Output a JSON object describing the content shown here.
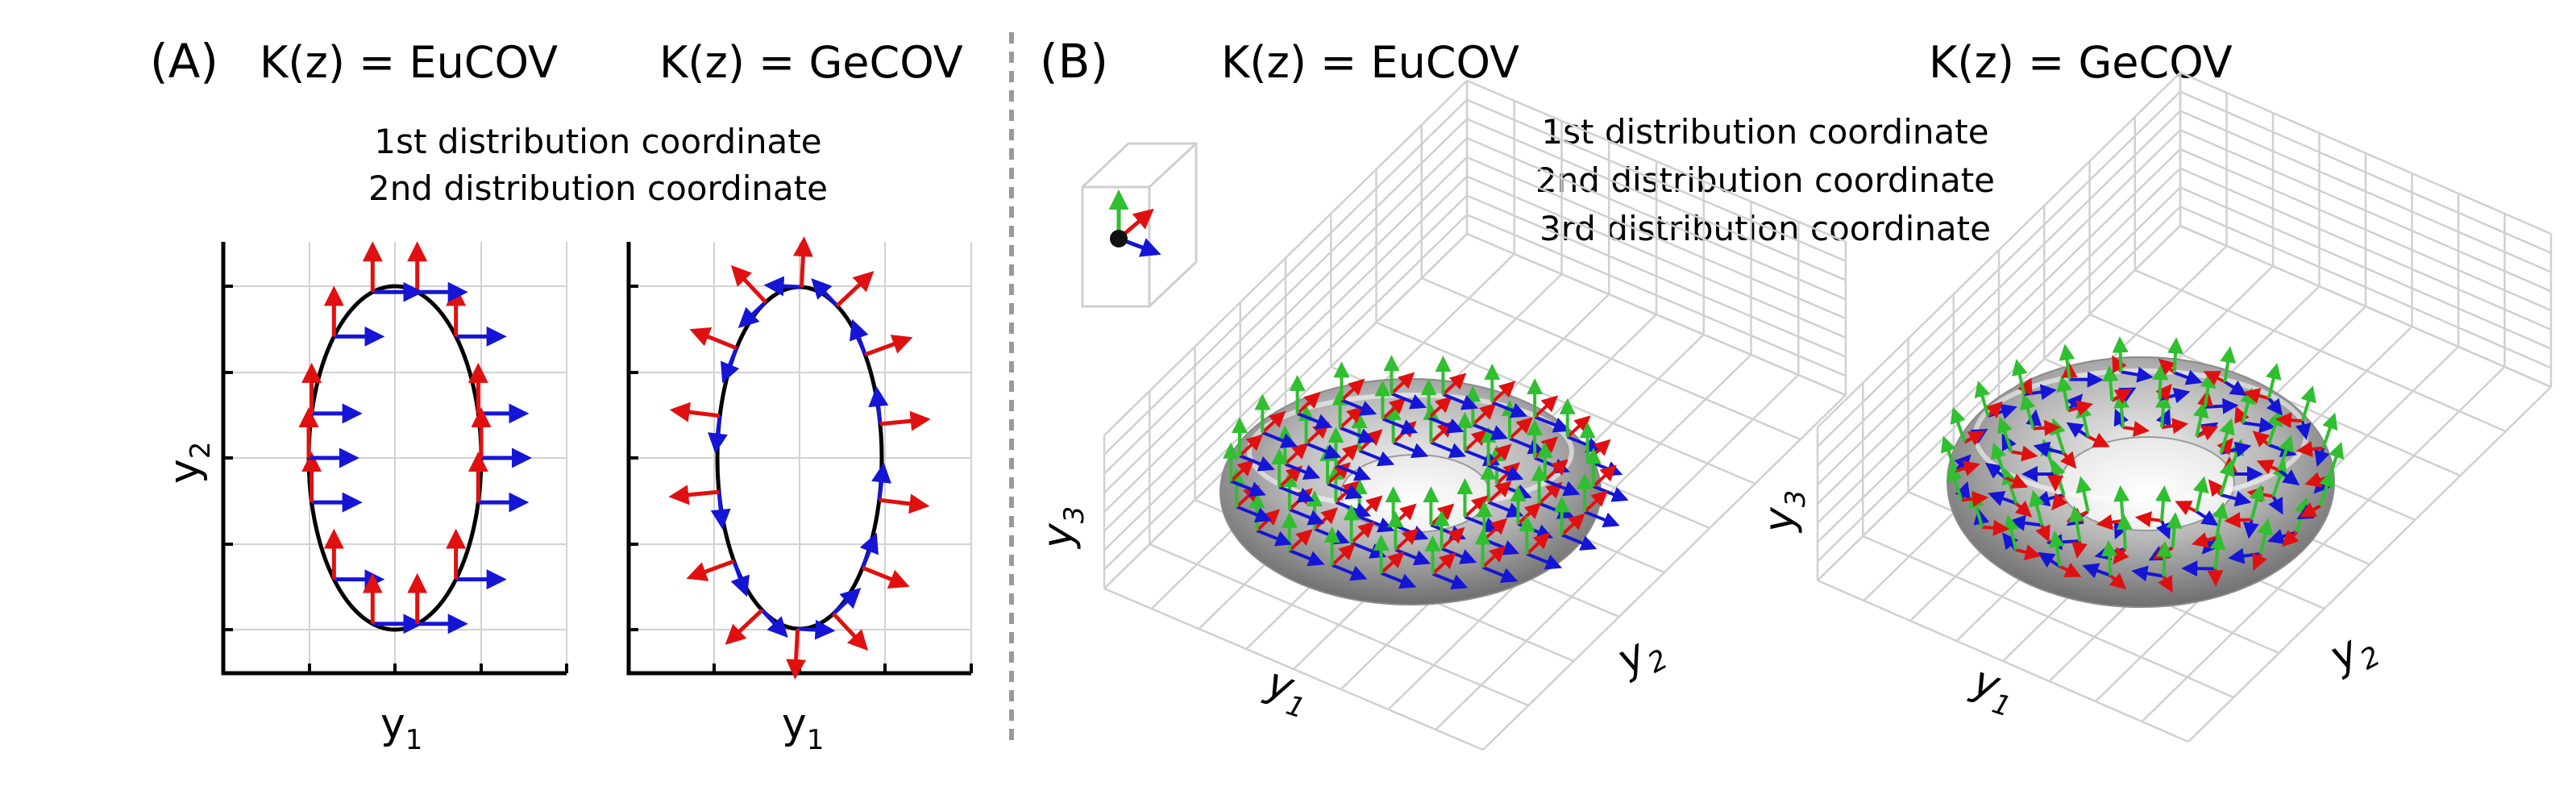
{
  "panelA": {
    "letter": "(A)",
    "title_left": "K(z) = EuCOV",
    "title_right": "K(z) = GeCOV",
    "legend": [
      {
        "text": "1st distribution coordinate",
        "color": "#1515d6"
      },
      {
        "text": "2nd distribution coordinate",
        "color": "#e01010"
      }
    ],
    "xlabel_left": "y",
    "xsub_left": "1",
    "xlabel_right": "y",
    "xsub_right": "1",
    "ylabel": "y",
    "ysub": "2"
  },
  "panelB": {
    "letter": "(B)",
    "title_left": "K(z) = EuCOV",
    "title_right": "K(z) = GeCOV",
    "legend": [
      {
        "text": "1st distribution coordinate",
        "color": "#1515d6"
      },
      {
        "text": "2nd distribution coordinate",
        "color": "#e01010"
      },
      {
        "text": "3rd distribution coordinate",
        "color": "#2fbf2f"
      }
    ],
    "left_axes": {
      "x": "y",
      "xsub": "1",
      "y": "y",
      "ysub": "2",
      "z": "y",
      "zsub": "3"
    },
    "right_axes": {
      "x": "y",
      "xsub": "1",
      "y": "y",
      "ysub": "2",
      "z": "y",
      "zsub": "3"
    }
  },
  "colors": {
    "blue": "#1515d6",
    "red": "#e01010",
    "green": "#2fbf2f",
    "divider": "#9a9a9a",
    "grid": "#cfcfcf"
  }
}
